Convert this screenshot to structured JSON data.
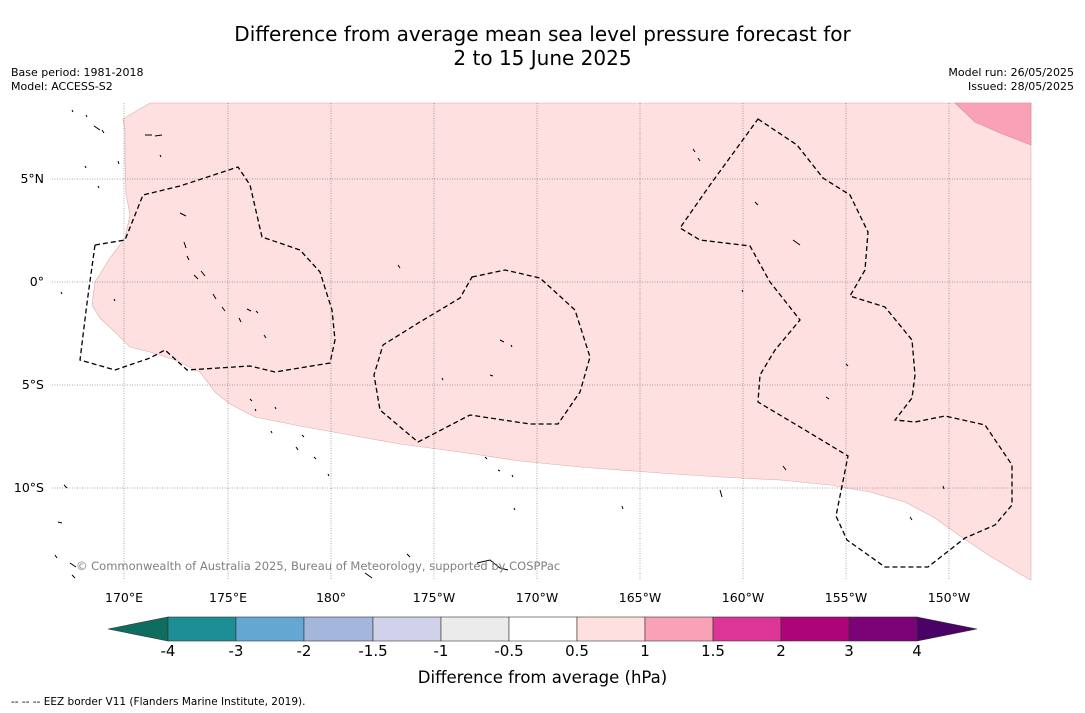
{
  "title": {
    "line1": "Difference from average mean sea level pressure forecast for",
    "line2": "2 to 15 June 2025"
  },
  "meta_left": {
    "base_period": "Base period: 1981-2018",
    "model": "Model: ACCESS-S2"
  },
  "meta_right": {
    "model_run": "Model run: 26/05/2025",
    "issued": "Issued: 28/05/2025"
  },
  "map": {
    "copyright": "© Commonwealth of Australia 2025, Bureau of Meteorology, supported by COSPPac",
    "longitude_labels": [
      "170°E",
      "175°E",
      "180°",
      "175°W",
      "170°W",
      "165°W",
      "160°W",
      "155°W",
      "150°W"
    ],
    "latitude_labels": [
      "5°N",
      "0°",
      "5°S",
      "10°S"
    ],
    "extent": {
      "lon_min": 165.2,
      "lon_max": 210.3,
      "lat_min": -14.4,
      "lat_max": 8.6
    },
    "colors": {
      "ocean_default": "#ffffff",
      "anomaly_0_5_to_1": "#fde0df",
      "anomaly_1_to_1_5": "#f9a2b7"
    }
  },
  "colorbar": {
    "title": "Difference from average (hPa)",
    "tick_labels": [
      "-4",
      "-3",
      "-2",
      "-1.5",
      "-1",
      "-0.5",
      "0.5",
      "1",
      "1.5",
      "2",
      "3",
      "4"
    ],
    "colors": [
      "#1d8f94",
      "#65a7d3",
      "#a3b6dc",
      "#d1d1ea",
      "#ebebeb",
      "#ffffff",
      "#fde0df",
      "#f9a2b7",
      "#dc3497",
      "#ad0579",
      "#7b0277"
    ],
    "extend_low_color": "#0e6d5f",
    "extend_high_color": "#4b0267"
  },
  "footnote": "-- -- -- EEZ border V11 (Flanders Marine Institute, 2019)."
}
